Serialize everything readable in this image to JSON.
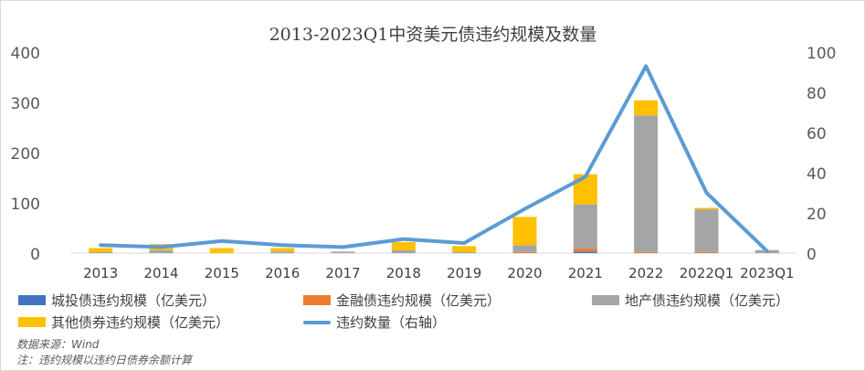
{
  "chart_data": {
    "type": "bar",
    "stacked": true,
    "title": "2013-2023Q1中资美元债违约规模及数量",
    "categories": [
      "2013",
      "2014",
      "2015",
      "2016",
      "2017",
      "2018",
      "2019",
      "2020",
      "2021",
      "2022",
      "2022Q1",
      "2023Q1"
    ],
    "series": [
      {
        "name": "城投债违约规模（亿美元）",
        "type": "bar",
        "axis": "left",
        "color": "#4472C4",
        "values": [
          0,
          0,
          0,
          0,
          0,
          0,
          0,
          0,
          3,
          0,
          0,
          0
        ]
      },
      {
        "name": "金融债违约规模（亿美元）",
        "type": "bar",
        "axis": "left",
        "color": "#ED7D31",
        "values": [
          0,
          0,
          0,
          0,
          0,
          0,
          0,
          2,
          6,
          2,
          2,
          0
        ]
      },
      {
        "name": "地产债违约规模（亿美元）",
        "type": "bar",
        "axis": "left",
        "color": "#A5A5A5",
        "values": [
          2,
          6,
          0,
          3,
          3,
          6,
          2,
          14,
          88,
          272,
          85,
          6
        ]
      },
      {
        "name": "其他债券违约规模（亿美元）",
        "type": "bar",
        "axis": "left",
        "color": "#FFC000",
        "values": [
          8,
          12,
          10,
          7,
          0,
          16,
          12,
          56,
          60,
          30,
          3,
          0
        ]
      },
      {
        "name": "违约数量（右轴）",
        "type": "line",
        "axis": "right",
        "color": "#5B9BD5",
        "values": [
          4,
          3,
          6,
          4,
          3,
          7,
          5,
          22,
          38,
          93,
          30,
          1
        ]
      }
    ],
    "y_left": {
      "min": 0,
      "max": 400,
      "ticks": [
        0,
        100,
        200,
        300,
        400
      ]
    },
    "y_right": {
      "min": 0,
      "max": 100,
      "ticks": [
        0,
        20,
        40,
        60,
        80,
        100
      ]
    },
    "legend_position": "bottom",
    "grid": false
  },
  "notes": {
    "source": "数据来源：Wind",
    "note": "注：违约规模以违约日债券余额计算"
  }
}
